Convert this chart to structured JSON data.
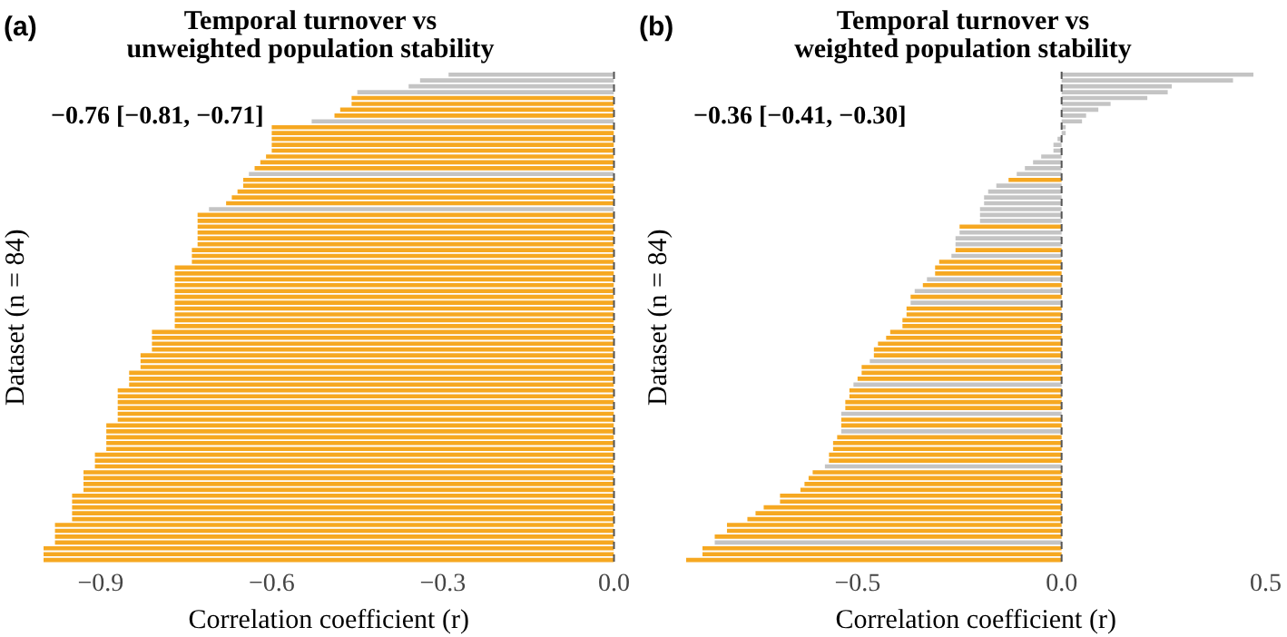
{
  "chart_data": [
    {
      "type": "bar",
      "orientation": "horizontal",
      "title": "Temporal turnover vs\nunweighted population stability",
      "xlabel": "Correlation coefficient (r)",
      "ylabel": "Dataset (n = 84)",
      "annotations": [
        "(a)",
        "−0.76 [−0.81, −0.71]"
      ],
      "categories": [
        null,
        null,
        null,
        null,
        null,
        null,
        null,
        null,
        null,
        null,
        null,
        null,
        null,
        null,
        null,
        null,
        null,
        null,
        null,
        null,
        null,
        null,
        null,
        null,
        null,
        null,
        null,
        null,
        null,
        null,
        null,
        null,
        null,
        null,
        null,
        null,
        null,
        null,
        null,
        null,
        null,
        null,
        null,
        null,
        null,
        null,
        null,
        null,
        null,
        null,
        null,
        null,
        null,
        null,
        null,
        null,
        null,
        null,
        null,
        null,
        null,
        null,
        null,
        null,
        null,
        null,
        null,
        null,
        null,
        null,
        null,
        null,
        null,
        null,
        null,
        null,
        null,
        null,
        null,
        null,
        null,
        null,
        null,
        null
      ],
      "values": [
        -0.29,
        -0.34,
        -0.36,
        -0.45,
        -0.46,
        -0.46,
        -0.48,
        -0.49,
        -0.53,
        -0.6,
        -0.6,
        -0.6,
        -0.6,
        -0.6,
        -0.61,
        -0.62,
        -0.63,
        -0.64,
        -0.65,
        -0.65,
        -0.66,
        -0.67,
        -0.68,
        -0.71,
        -0.73,
        -0.73,
        -0.73,
        -0.73,
        -0.73,
        -0.73,
        -0.74,
        -0.74,
        -0.74,
        -0.77,
        -0.77,
        -0.77,
        -0.77,
        -0.77,
        -0.77,
        -0.77,
        -0.77,
        -0.77,
        -0.77,
        -0.77,
        -0.81,
        -0.81,
        -0.81,
        -0.81,
        -0.83,
        -0.83,
        -0.83,
        -0.85,
        -0.85,
        -0.85,
        -0.87,
        -0.87,
        -0.87,
        -0.87,
        -0.87,
        -0.87,
        -0.89,
        -0.89,
        -0.89,
        -0.89,
        -0.89,
        -0.91,
        -0.91,
        -0.91,
        -0.93,
        -0.93,
        -0.93,
        -0.93,
        -0.95,
        -0.95,
        -0.95,
        -0.95,
        -0.95,
        -0.98,
        -0.98,
        -0.98,
        -0.98,
        -1.0,
        -1.0,
        -1.0
      ],
      "colors": [
        "#c4c4c4",
        "#c4c4c4",
        "#c4c4c4",
        "#c4c4c4",
        "#f6a821",
        "#f6a821",
        "#f6a821",
        "#f6a821",
        "#c4c4c4",
        "#f6a821",
        "#f6a821",
        "#f6a821",
        "#f6a821",
        "#f6a821",
        "#f6a821",
        "#f6a821",
        "#f6a821",
        "#c4c4c4",
        "#f6a821",
        "#f6a821",
        "#f6a821",
        "#f6a821",
        "#f6a821",
        "#c4c4c4",
        "#f6a821",
        "#f6a821",
        "#f6a821",
        "#f6a821",
        "#f6a821",
        "#f6a821",
        "#f6a821",
        "#f6a821",
        "#f6a821",
        "#f6a821",
        "#f6a821",
        "#f6a821",
        "#f6a821",
        "#f6a821",
        "#f6a821",
        "#f6a821",
        "#f6a821",
        "#f6a821",
        "#f6a821",
        "#f6a821",
        "#f6a821",
        "#f6a821",
        "#f6a821",
        "#f6a821",
        "#f6a821",
        "#f6a821",
        "#f6a821",
        "#f6a821",
        "#f6a821",
        "#f6a821",
        "#f6a821",
        "#f6a821",
        "#f6a821",
        "#f6a821",
        "#f6a821",
        "#f6a821",
        "#f6a821",
        "#f6a821",
        "#f6a821",
        "#f6a821",
        "#f6a821",
        "#f6a821",
        "#f6a821",
        "#f6a821",
        "#f6a821",
        "#f6a821",
        "#f6a821",
        "#f6a821",
        "#f6a821",
        "#f6a821",
        "#f6a821",
        "#f6a821",
        "#f6a821",
        "#f6a821",
        "#f6a821",
        "#f6a821",
        "#f6a821",
        "#f6a821",
        "#f6a821",
        "#f6a821"
      ],
      "xlim": [
        -1.0,
        0
      ],
      "xticks": [
        {
          "value": -0.9,
          "label": "−0.9"
        },
        {
          "value": -0.6,
          "label": "−0.6"
        },
        {
          "value": -0.3,
          "label": "−0.3"
        },
        {
          "value": 0,
          "label": "0.0"
        }
      ],
      "ref_lines": [
        {
          "axis": "x",
          "value": 0,
          "color": "#555555",
          "line_style": "dashed"
        }
      ]
    },
    {
      "type": "bar",
      "orientation": "horizontal",
      "title": "Temporal turnover vs\nweighted population stability",
      "xlabel": "Correlation coefficient (r)",
      "ylabel": "Dataset (n = 84)",
      "annotations": [
        "(b)",
        "−0.36 [−0.41, −0.30]"
      ],
      "categories": [
        null,
        null,
        null,
        null,
        null,
        null,
        null,
        null,
        null,
        null,
        null,
        null,
        null,
        null,
        null,
        null,
        null,
        null,
        null,
        null,
        null,
        null,
        null,
        null,
        null,
        null,
        null,
        null,
        null,
        null,
        null,
        null,
        null,
        null,
        null,
        null,
        null,
        null,
        null,
        null,
        null,
        null,
        null,
        null,
        null,
        null,
        null,
        null,
        null,
        null,
        null,
        null,
        null,
        null,
        null,
        null,
        null,
        null,
        null,
        null,
        null,
        null,
        null,
        null,
        null,
        null,
        null,
        null,
        null,
        null,
        null,
        null,
        null,
        null,
        null,
        null,
        null,
        null,
        null,
        null,
        null,
        null,
        null,
        null
      ],
      "values": [
        0.47,
        0.42,
        0.27,
        0.26,
        0.21,
        0.12,
        0.09,
        0.06,
        0.05,
        0.01,
        0.01,
        -0.01,
        -0.02,
        -0.02,
        -0.05,
        -0.07,
        -0.09,
        -0.11,
        -0.13,
        -0.16,
        -0.18,
        -0.19,
        -0.19,
        -0.2,
        -0.2,
        -0.2,
        -0.25,
        -0.25,
        -0.26,
        -0.26,
        -0.26,
        -0.27,
        -0.3,
        -0.31,
        -0.31,
        -0.33,
        -0.34,
        -0.36,
        -0.37,
        -0.37,
        -0.38,
        -0.38,
        -0.39,
        -0.39,
        -0.42,
        -0.43,
        -0.45,
        -0.46,
        -0.46,
        -0.47,
        -0.49,
        -0.49,
        -0.5,
        -0.51,
        -0.52,
        -0.52,
        -0.53,
        -0.53,
        -0.54,
        -0.54,
        -0.54,
        -0.54,
        -0.55,
        -0.56,
        -0.56,
        -0.57,
        -0.57,
        -0.58,
        -0.61,
        -0.62,
        -0.63,
        -0.64,
        -0.69,
        -0.69,
        -0.73,
        -0.75,
        -0.77,
        -0.82,
        -0.82,
        -0.85,
        -0.85,
        -0.88,
        -0.88,
        -0.92
      ],
      "colors": [
        "#c4c4c4",
        "#c4c4c4",
        "#c4c4c4",
        "#c4c4c4",
        "#c4c4c4",
        "#c4c4c4",
        "#c4c4c4",
        "#c4c4c4",
        "#c4c4c4",
        "#c4c4c4",
        "#c4c4c4",
        "#c4c4c4",
        "#c4c4c4",
        "#c4c4c4",
        "#c4c4c4",
        "#c4c4c4",
        "#c4c4c4",
        "#c4c4c4",
        "#f6a821",
        "#c4c4c4",
        "#c4c4c4",
        "#c4c4c4",
        "#c4c4c4",
        "#c4c4c4",
        "#c4c4c4",
        "#c4c4c4",
        "#f6a821",
        "#c4c4c4",
        "#c4c4c4",
        "#c4c4c4",
        "#f6a821",
        "#c4c4c4",
        "#f6a821",
        "#f6a821",
        "#f6a821",
        "#c4c4c4",
        "#f6a821",
        "#c4c4c4",
        "#f6a821",
        "#c4c4c4",
        "#f6a821",
        "#f6a821",
        "#f6a821",
        "#f6a821",
        "#f6a821",
        "#f6a821",
        "#f6a821",
        "#f6a821",
        "#f6a821",
        "#c4c4c4",
        "#f6a821",
        "#f6a821",
        "#f6a821",
        "#c4c4c4",
        "#f6a821",
        "#f6a821",
        "#f6a821",
        "#f6a821",
        "#c4c4c4",
        "#f6a821",
        "#f6a821",
        "#c4c4c4",
        "#f6a821",
        "#f6a821",
        "#f6a821",
        "#f6a821",
        "#f6a821",
        "#c4c4c4",
        "#f6a821",
        "#f6a821",
        "#f6a821",
        "#f6a821",
        "#f6a821",
        "#f6a821",
        "#f6a821",
        "#f6a821",
        "#f6a821",
        "#f6a821",
        "#f6a821",
        "#f6a821",
        "#c4c4c4",
        "#f6a821",
        "#f6a821",
        "#f6a821"
      ],
      "xlim": [
        -0.92,
        0.5
      ],
      "xticks": [
        {
          "value": -0.5,
          "label": "−0.5"
        },
        {
          "value": 0,
          "label": "0.0"
        },
        {
          "value": 0.5,
          "label": "0.5"
        }
      ],
      "ref_lines": [
        {
          "axis": "x",
          "value": 0,
          "color": "#555555",
          "line_style": "dashed"
        }
      ]
    }
  ]
}
